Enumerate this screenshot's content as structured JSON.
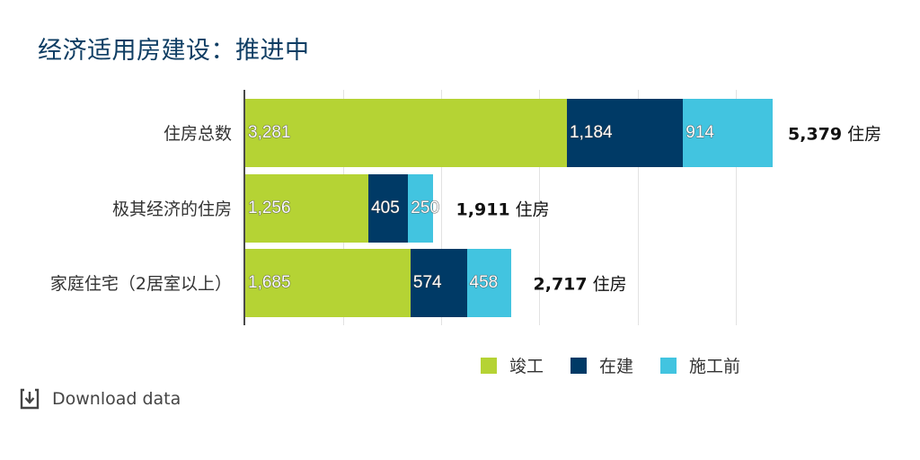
{
  "title": "经济适用房建设：推进中",
  "colors": {
    "completed": "#b5d334",
    "under_construction": "#003a66",
    "pre_construction": "#42c4e0",
    "title": "#0e3d63",
    "axis": "#4a4a4a",
    "grid": "#e2e2e2"
  },
  "rows": [
    {
      "label": "住房总数",
      "values": [
        3281,
        1184,
        914
      ],
      "value_labels": [
        "3,281",
        "1,184",
        "914"
      ],
      "total": 5379,
      "total_label": "5,379",
      "unit": "住房"
    },
    {
      "label": "极其经济的住房",
      "values": [
        1256,
        405,
        250
      ],
      "value_labels": [
        "1,256",
        "405",
        "250"
      ],
      "total": 1911,
      "total_label": "1,911",
      "unit": "住房"
    },
    {
      "label": "家庭住宅（2居室以上）",
      "values": [
        1685,
        574,
        458
      ],
      "value_labels": [
        "1,685",
        "574",
        "458"
      ],
      "total": 2717,
      "total_label": "2,717",
      "unit": "住房"
    }
  ],
  "legend": [
    {
      "label": "竣工",
      "color": "#b5d334"
    },
    {
      "label": "在建",
      "color": "#003a66"
    },
    {
      "label": "施工前",
      "color": "#42c4e0"
    }
  ],
  "download": {
    "label": "Download data",
    "icon": "download-icon"
  },
  "chart_data": {
    "type": "bar",
    "orientation": "horizontal",
    "stacked": true,
    "title": "经济适用房建设：推进中",
    "categories": [
      "住房总数",
      "极其经济的住房",
      "家庭住宅（2居室以上）"
    ],
    "series": [
      {
        "name": "竣工",
        "values": [
          3281,
          1256,
          1685
        ]
      },
      {
        "name": "在建",
        "values": [
          1184,
          405,
          574
        ]
      },
      {
        "name": "施工前",
        "values": [
          914,
          250,
          458
        ]
      }
    ],
    "totals": [
      5379,
      1911,
      2717
    ],
    "total_suffix": "住房",
    "xlabel": "",
    "ylabel": "",
    "xlim": [
      0,
      6000
    ],
    "grid": true,
    "legend_position": "bottom-right"
  }
}
